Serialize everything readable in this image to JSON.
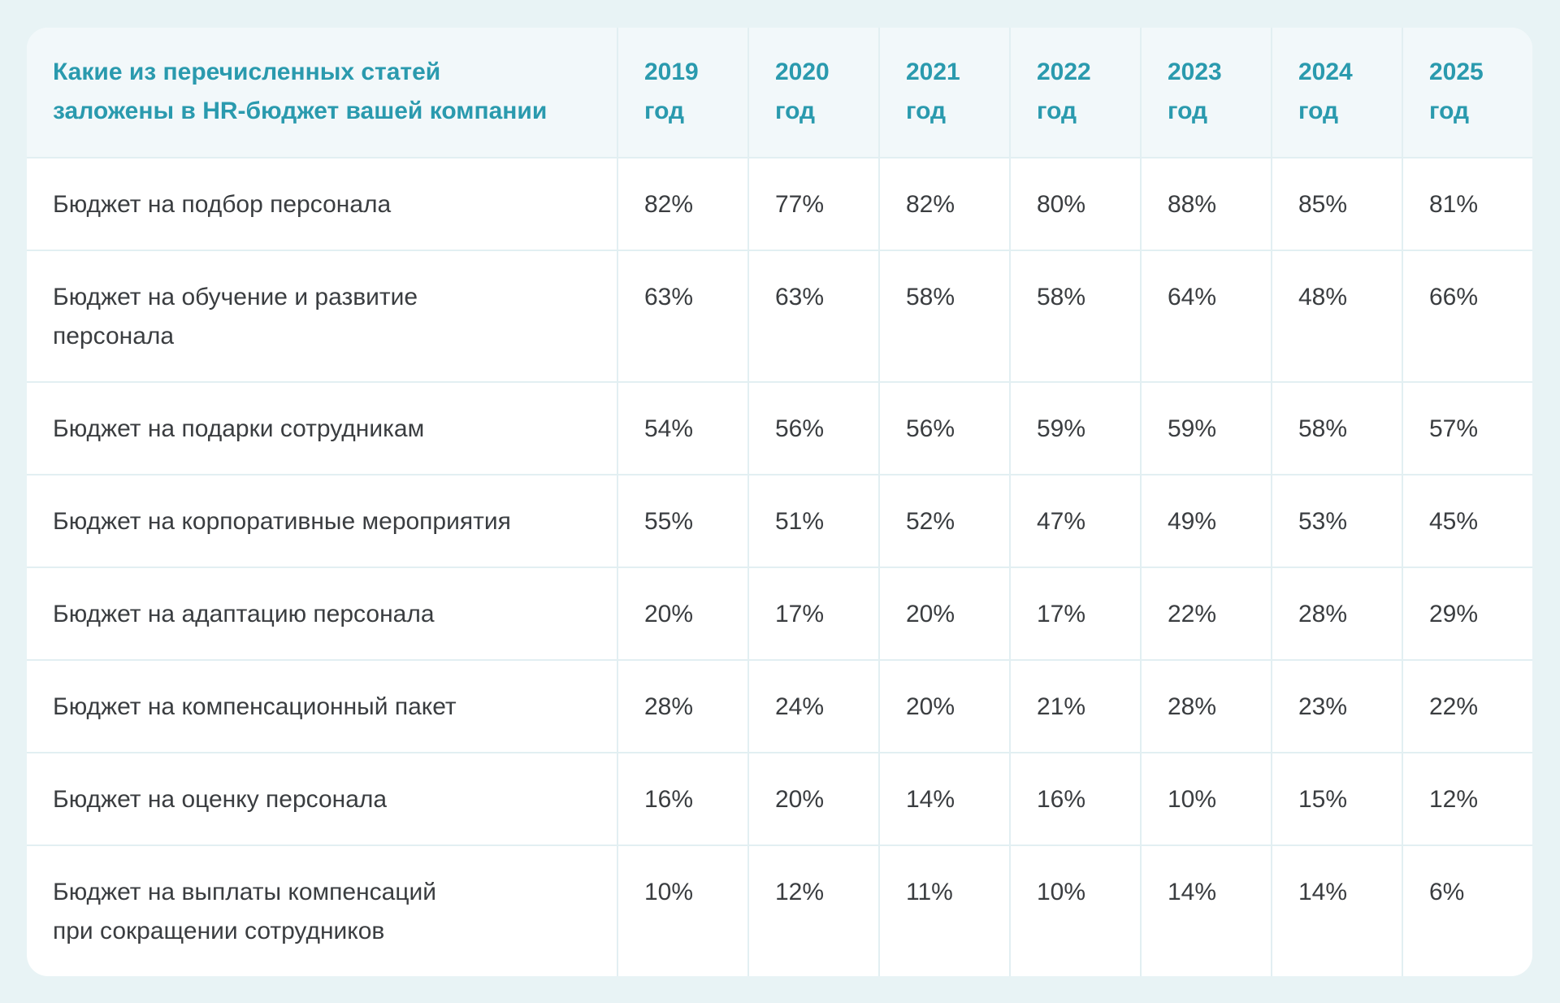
{
  "header": {
    "question": "Какие из перечисленных статей\nзаложены в HR-бюджет вашей компании",
    "years": [
      "2019\nгод",
      "2020\nгод",
      "2021\nгод",
      "2022\nгод",
      "2023\nгод",
      "2024\nгод",
      "2025\nгод"
    ]
  },
  "rows": [
    {
      "label": "Бюджет на подбор персонала",
      "values": [
        "82%",
        "77%",
        "82%",
        "80%",
        "88%",
        "85%",
        "81%"
      ]
    },
    {
      "label": "Бюджет на обучение и развитие\nперсонала",
      "values": [
        "63%",
        "63%",
        "58%",
        "58%",
        "64%",
        "48%",
        "66%"
      ]
    },
    {
      "label": "Бюджет на подарки сотрудникам",
      "values": [
        "54%",
        "56%",
        "56%",
        "59%",
        "59%",
        "58%",
        "57%"
      ]
    },
    {
      "label": "Бюджет на корпоративные мероприятия",
      "values": [
        "55%",
        "51%",
        "52%",
        "47%",
        "49%",
        "53%",
        "45%"
      ]
    },
    {
      "label": "Бюджет на адаптацию персонала",
      "values": [
        "20%",
        "17%",
        "20%",
        "17%",
        "22%",
        "28%",
        "29%"
      ]
    },
    {
      "label": "Бюджет на компенсационный пакет",
      "values": [
        "28%",
        "24%",
        "20%",
        "21%",
        "28%",
        "23%",
        "22%"
      ]
    },
    {
      "label": "Бюджет на оценку персонала",
      "values": [
        "16%",
        "20%",
        "14%",
        "16%",
        "10%",
        "15%",
        "12%"
      ]
    },
    {
      "label": "Бюджет на выплаты компенсаций\nпри сокращении сотрудников",
      "values": [
        "10%",
        "12%",
        "11%",
        "10%",
        "14%",
        "14%",
        "6%"
      ]
    }
  ]
}
